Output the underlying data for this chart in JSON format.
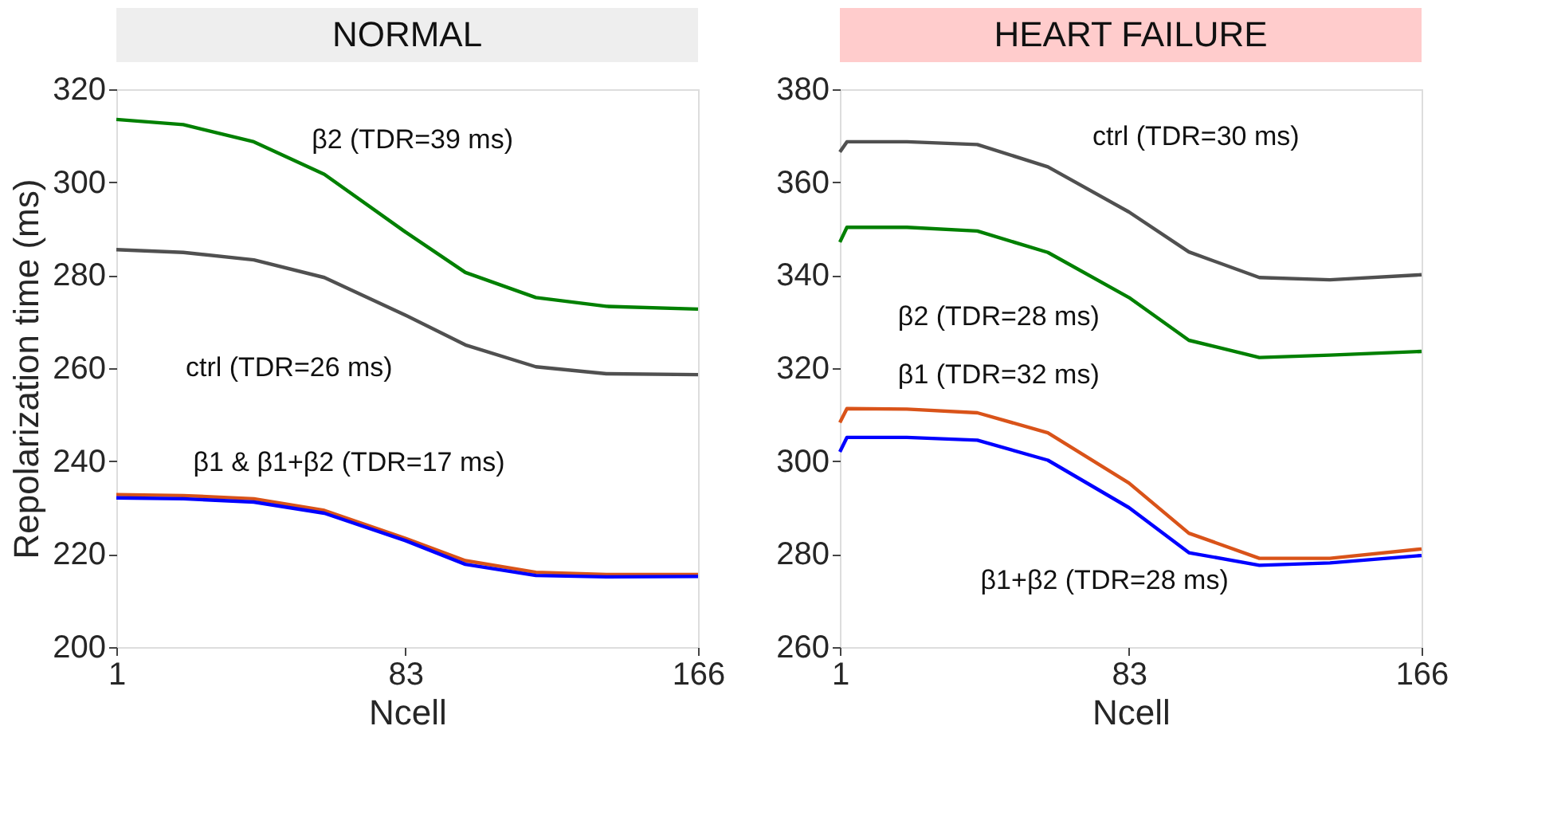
{
  "chart_data": [
    {
      "type": "line",
      "title": "NORMAL",
      "xlabel": "Ncell",
      "ylabel": "Repolarization time (ms)",
      "xlim": [
        1,
        166
      ],
      "xticks": [
        1,
        83,
        166
      ],
      "ylim": [
        200,
        320
      ],
      "yticks": [
        200,
        220,
        240,
        260,
        280,
        300,
        320
      ],
      "grid": false,
      "x": [
        1,
        20,
        40,
        60,
        83,
        100,
        120,
        140,
        166
      ],
      "series": [
        {
          "color": "#008000",
          "values": [
            313.5,
            312.4,
            308.7,
            301.7,
            289.3,
            280.6,
            275.2,
            273.3,
            272.7
          ]
        },
        {
          "color": "#505050",
          "values": [
            285.5,
            284.9,
            283.3,
            279.5,
            271.4,
            265,
            260.3,
            258.8,
            258.6
          ]
        },
        {
          "color": "#d95319",
          "values": [
            232.8,
            232.6,
            231.9,
            229.4,
            223.4,
            218.6,
            216.1,
            215.6,
            215.6
          ]
        },
        {
          "color": "#0000ff",
          "values": [
            232.1,
            231.9,
            231.2,
            228.8,
            222.9,
            217.8,
            215.4,
            215.1,
            215.2
          ]
        }
      ],
      "annotations": [
        "β2 (TDR=39 ms)",
        "ctrl (TDR=26 ms)",
        "β1 & β1+β2 (TDR=17 ms)"
      ]
    },
    {
      "type": "line",
      "title": "HEART FAILURE",
      "xlabel": "Ncell",
      "xlim": [
        1,
        166
      ],
      "xticks": [
        1,
        83,
        166
      ],
      "ylim": [
        260,
        380
      ],
      "yticks": [
        260,
        280,
        300,
        320,
        340,
        360,
        380
      ],
      "grid": false,
      "x": [
        1,
        3,
        20,
        40,
        60,
        83,
        100,
        120,
        140,
        166
      ],
      "series": [
        {
          "color": "#505050",
          "values": [
            366.5,
            368.7,
            368.7,
            368.1,
            363.3,
            353.6,
            345,
            339.5,
            339,
            340.1
          ]
        },
        {
          "color": "#008000",
          "values": [
            347.1,
            350.3,
            350.3,
            349.5,
            344.9,
            335.2,
            326,
            322.3,
            322.8,
            323.6
          ]
        },
        {
          "color": "#d95319",
          "values": [
            308.3,
            311.3,
            311.2,
            310.4,
            306.1,
            295.3,
            284.5,
            279.1,
            279.1,
            281.1
          ]
        },
        {
          "color": "#0000ff",
          "values": [
            302,
            305.1,
            305.1,
            304.5,
            300.2,
            290,
            280.3,
            277.6,
            278.1,
            279.7
          ]
        }
      ],
      "annotations": [
        "ctrl (TDR=30 ms)",
        "β2 (TDR=28 ms)",
        "β1 (TDR=32 ms)",
        "β1+β2 (TDR=28 ms)"
      ]
    }
  ]
}
